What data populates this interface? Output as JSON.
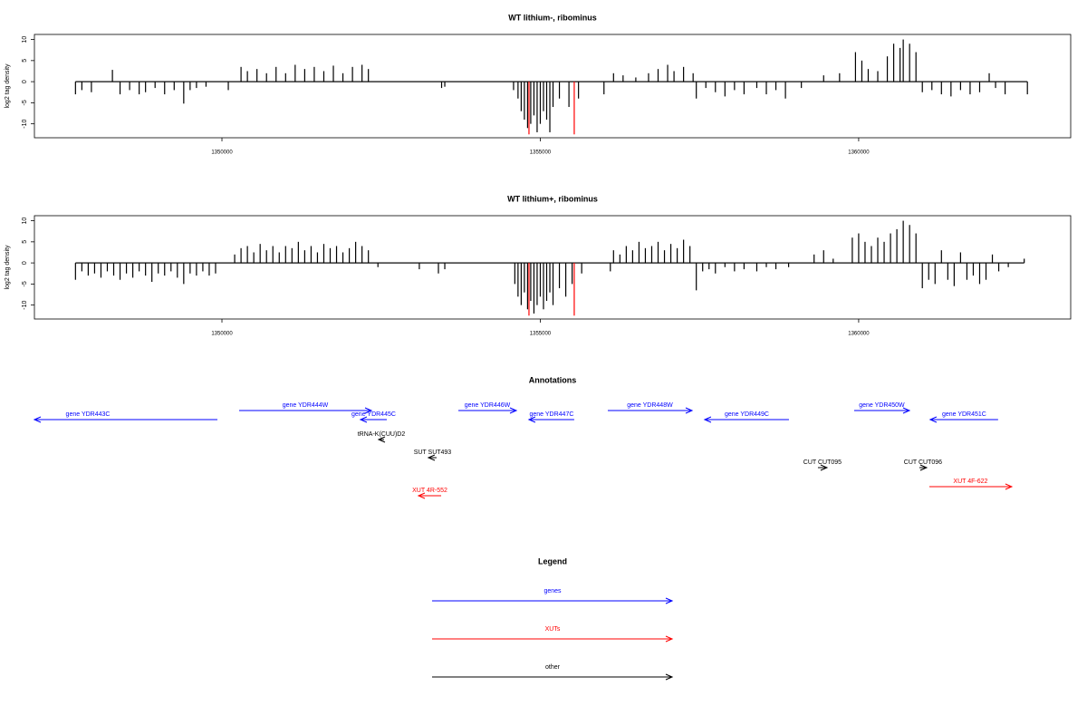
{
  "chart_data": [
    {
      "type": "bar",
      "title": "WT lithium-, ribominus",
      "y_label": "log2 tag density",
      "xlim": [
        1347055,
        1363330
      ],
      "ylim": [
        -13.3,
        11.2
      ],
      "xticks": [
        1350000,
        1355000,
        1360000
      ],
      "yticks": [
        -10,
        -5,
        0,
        5,
        10
      ],
      "series": [
        {
          "color": "#000000",
          "x": [
            1347700,
            1347800,
            1347950,
            1348280,
            1348400,
            1348550,
            1348700,
            1348800,
            1348950,
            1349100,
            1349250,
            1349400,
            1349500,
            1349600,
            1349750,
            1350100,
            1350300,
            1350400,
            1350550,
            1350700,
            1350850,
            1351000,
            1351150,
            1351300,
            1351450,
            1351600,
            1351750,
            1351900,
            1352050,
            1352200,
            1352300,
            1353450,
            1353500,
            1354580,
            1354650,
            1354700,
            1354750,
            1354800,
            1354850,
            1354900,
            1354950,
            1355000,
            1355050,
            1355100,
            1355150,
            1355200,
            1355300,
            1355450,
            1355600,
            1356000,
            1356150,
            1356300,
            1356500,
            1356700,
            1356850,
            1357000,
            1357100,
            1357250,
            1357400,
            1357450,
            1357600,
            1357750,
            1357900,
            1358050,
            1358200,
            1358400,
            1358550,
            1358700,
            1358850,
            1359100,
            1359450,
            1359700,
            1359950,
            1360050,
            1360150,
            1360300,
            1360450,
            1360550,
            1360650,
            1360700,
            1360800,
            1360900,
            1361000,
            1361150,
            1361300,
            1361450,
            1361600,
            1361750,
            1361900,
            1362050,
            1362150,
            1362300,
            1362650
          ],
          "values": [
            -3,
            -2,
            -2.5,
            2.8,
            -3,
            -2,
            -3,
            -2.5,
            -1.5,
            -3,
            -2,
            -5.2,
            -2,
            -1.5,
            -1.2,
            -2,
            3.5,
            2.5,
            3,
            2,
            3.5,
            2,
            4,
            3,
            3.5,
            2.5,
            3.8,
            2,
            3.5,
            4,
            3,
            -1.5,
            -1.2,
            -2,
            -4,
            -7,
            -9,
            -11,
            -10,
            -8,
            -12,
            -10,
            -7,
            -9,
            -12,
            -6,
            -4,
            -6,
            -4,
            -3,
            2,
            1.5,
            1,
            2,
            3,
            4,
            2.5,
            3.5,
            2,
            -4,
            -1.5,
            -2.5,
            -3.5,
            -2,
            -3,
            -1.5,
            -3,
            -2,
            -4,
            -1.5,
            1.5,
            2,
            7,
            5,
            3,
            2.5,
            6,
            9,
            8,
            10,
            9,
            7,
            -2.5,
            -2,
            -3,
            -3.5,
            -2,
            -3,
            -2.5,
            2,
            -1.5,
            -3,
            -3
          ]
        },
        {
          "color": "#ff0000",
          "x": [
            1354822,
            1355533
          ],
          "values": [
            -12.5,
            -12.5
          ]
        }
      ]
    },
    {
      "type": "bar",
      "title": "WT lithium+, ribominus",
      "y_label": "log2 tag density",
      "xlim": [
        1347055,
        1363330
      ],
      "ylim": [
        -13.3,
        11.2
      ],
      "xticks": [
        1350000,
        1355000,
        1360000
      ],
      "yticks": [
        -10,
        -5,
        0,
        5,
        10
      ],
      "series": [
        {
          "color": "#000000",
          "x": [
            1347700,
            1347800,
            1347900,
            1348000,
            1348100,
            1348200,
            1348300,
            1348400,
            1348500,
            1348600,
            1348700,
            1348800,
            1348900,
            1349000,
            1349100,
            1349200,
            1349300,
            1349400,
            1349500,
            1349600,
            1349700,
            1349800,
            1349900,
            1350200,
            1350300,
            1350400,
            1350500,
            1350600,
            1350700,
            1350800,
            1350900,
            1351000,
            1351100,
            1351200,
            1351300,
            1351400,
            1351500,
            1351600,
            1351700,
            1351800,
            1351900,
            1352000,
            1352100,
            1352200,
            1352300,
            1352450,
            1353100,
            1353400,
            1353500,
            1354600,
            1354650,
            1354700,
            1354750,
            1354800,
            1354850,
            1354900,
            1354950,
            1355000,
            1355050,
            1355100,
            1355150,
            1355200,
            1355300,
            1355400,
            1355500,
            1355650,
            1356100,
            1356150,
            1356250,
            1356350,
            1356450,
            1356550,
            1356650,
            1356750,
            1356850,
            1356950,
            1357050,
            1357150,
            1357250,
            1357350,
            1357450,
            1357550,
            1357650,
            1357750,
            1357900,
            1358050,
            1358200,
            1358400,
            1358550,
            1358700,
            1358900,
            1359300,
            1359450,
            1359600,
            1359900,
            1360000,
            1360100,
            1360200,
            1360300,
            1360400,
            1360500,
            1360600,
            1360700,
            1360800,
            1360900,
            1361000,
            1361100,
            1361200,
            1361300,
            1361400,
            1361500,
            1361600,
            1361700,
            1361800,
            1361900,
            1362000,
            1362100,
            1362200,
            1362350,
            1362600
          ],
          "values": [
            -4,
            -2,
            -3,
            -2.5,
            -3.5,
            -2,
            -3,
            -4,
            -2.5,
            -3.5,
            -2,
            -3,
            -4.5,
            -2.5,
            -3,
            -2,
            -3.5,
            -5,
            -2.5,
            -3,
            -2,
            -3,
            -2.5,
            2,
            3.5,
            4,
            2.5,
            4.5,
            3,
            4,
            2.5,
            4,
            3.5,
            5,
            3,
            4,
            2.5,
            4.5,
            3.5,
            4,
            2.5,
            3.5,
            5,
            4,
            3,
            -1,
            -1.5,
            -2.5,
            -1.5,
            -5,
            -8,
            -10,
            -7,
            -11,
            -9,
            -12,
            -10,
            -8,
            -11,
            -9,
            -7,
            -10,
            -6,
            -8,
            -5,
            -2.5,
            -2,
            3,
            2,
            4,
            3,
            5,
            3.5,
            4,
            5,
            3,
            4.5,
            3.5,
            5.5,
            4,
            -6.5,
            -2,
            -1.5,
            -2.5,
            -1,
            -2,
            -1.5,
            -2,
            -1,
            -1.5,
            -1,
            2,
            3,
            1,
            6,
            7,
            5,
            4,
            6,
            5,
            7,
            8,
            10,
            9,
            7,
            -6,
            -4,
            -5,
            3,
            -4,
            -5.5,
            2.5,
            -4,
            -3,
            -5,
            -4,
            2,
            -2,
            -1,
            1
          ]
        },
        {
          "color": "#ff0000",
          "x": [
            1354822,
            1355533
          ],
          "values": [
            -12.5,
            -12.5
          ]
        }
      ]
    }
  ],
  "annotations": {
    "title": "Annotations",
    "items": [
      {
        "label": "gene YDR443C",
        "start": 1347055,
        "end": 1349929,
        "strand": "-",
        "color": "#0000ff"
      },
      {
        "label": "gene YDR444W",
        "start": 1350270,
        "end": 1352347,
        "strand": "+",
        "color": "#0000ff"
      },
      {
        "label": "gene YDR445C",
        "start": 1352176,
        "end": 1352589,
        "strand": "-",
        "color": "#0000ff"
      },
      {
        "label": "tRNA-K(CUU)D2",
        "start": 1352461,
        "end": 1352546,
        "strand": "-",
        "color": "#000000"
      },
      {
        "label": "SUT SUT493",
        "start": 1353243,
        "end": 1353371,
        "strand": "-",
        "color": "#000000"
      },
      {
        "label": "XUT 4R-552",
        "start": 1353087,
        "end": 1353443,
        "strand": "-",
        "color": "#ff0000"
      },
      {
        "label": "gene YDR446W",
        "start": 1353713,
        "end": 1354623,
        "strand": "+",
        "color": "#0000ff"
      },
      {
        "label": "gene YDR447C",
        "start": 1354822,
        "end": 1355533,
        "strand": "-",
        "color": "#0000ff"
      },
      {
        "label": "gene YDR448W",
        "start": 1356060,
        "end": 1357383,
        "strand": "+",
        "color": "#0000ff"
      },
      {
        "label": "gene YDR449C",
        "start": 1357582,
        "end": 1358905,
        "strand": "-",
        "color": "#0000ff"
      },
      {
        "label": "gene YDR450W",
        "start": 1359929,
        "end": 1360797,
        "strand": "+",
        "color": "#0000ff"
      },
      {
        "label": "gene YDR451C",
        "start": 1361124,
        "end": 1362190,
        "strand": "-",
        "color": "#0000ff"
      },
      {
        "label": "CUT CUT095",
        "start": 1359360,
        "end": 1359502,
        "strand": "+",
        "color": "#000000"
      },
      {
        "label": "CUT CUT096",
        "start": 1360953,
        "end": 1361067,
        "strand": "+",
        "color": "#000000"
      },
      {
        "label": "XUT 4F-622",
        "start": 1361110,
        "end": 1362404,
        "strand": "+",
        "color": "#ff0000"
      }
    ]
  },
  "legend": {
    "title": "Legend",
    "items": [
      {
        "label": "genes",
        "color": "#0000ff"
      },
      {
        "label": "XUTs",
        "color": "#ff0000"
      },
      {
        "label": "other",
        "color": "#000000"
      }
    ]
  }
}
